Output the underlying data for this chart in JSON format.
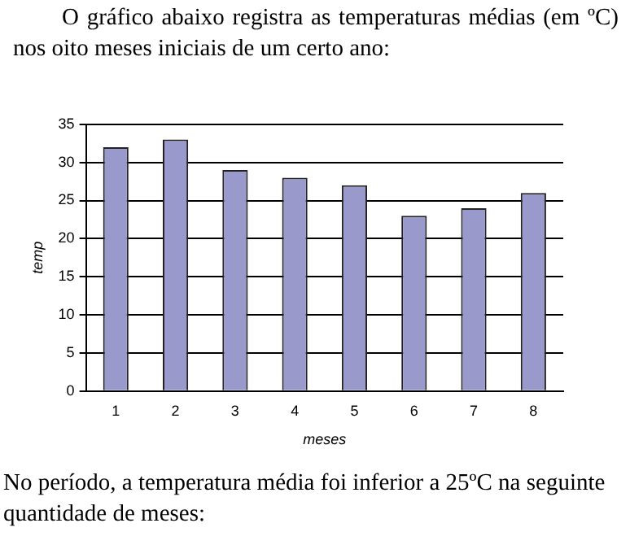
{
  "chart_data": {
    "type": "bar",
    "title": "O gráfico abaixo registra as temperaturas médias (em ºC) nos oito meses iniciais de um certo ano:",
    "xlabel": "meses",
    "ylabel": "temp",
    "categories": [
      "1",
      "2",
      "3",
      "4",
      "5",
      "6",
      "7",
      "8"
    ],
    "values": [
      32,
      33,
      29,
      28,
      27,
      23,
      24,
      26
    ],
    "color": "#9999cc",
    "ylim": [
      0,
      35
    ],
    "yticks": [
      0,
      5,
      10,
      15,
      20,
      25,
      30,
      35
    ],
    "grid": "y",
    "legend": false,
    "annotations": [
      "No período, a temperatura média foi inferior a 25ºC na seguinte quantidade de meses:"
    ]
  }
}
